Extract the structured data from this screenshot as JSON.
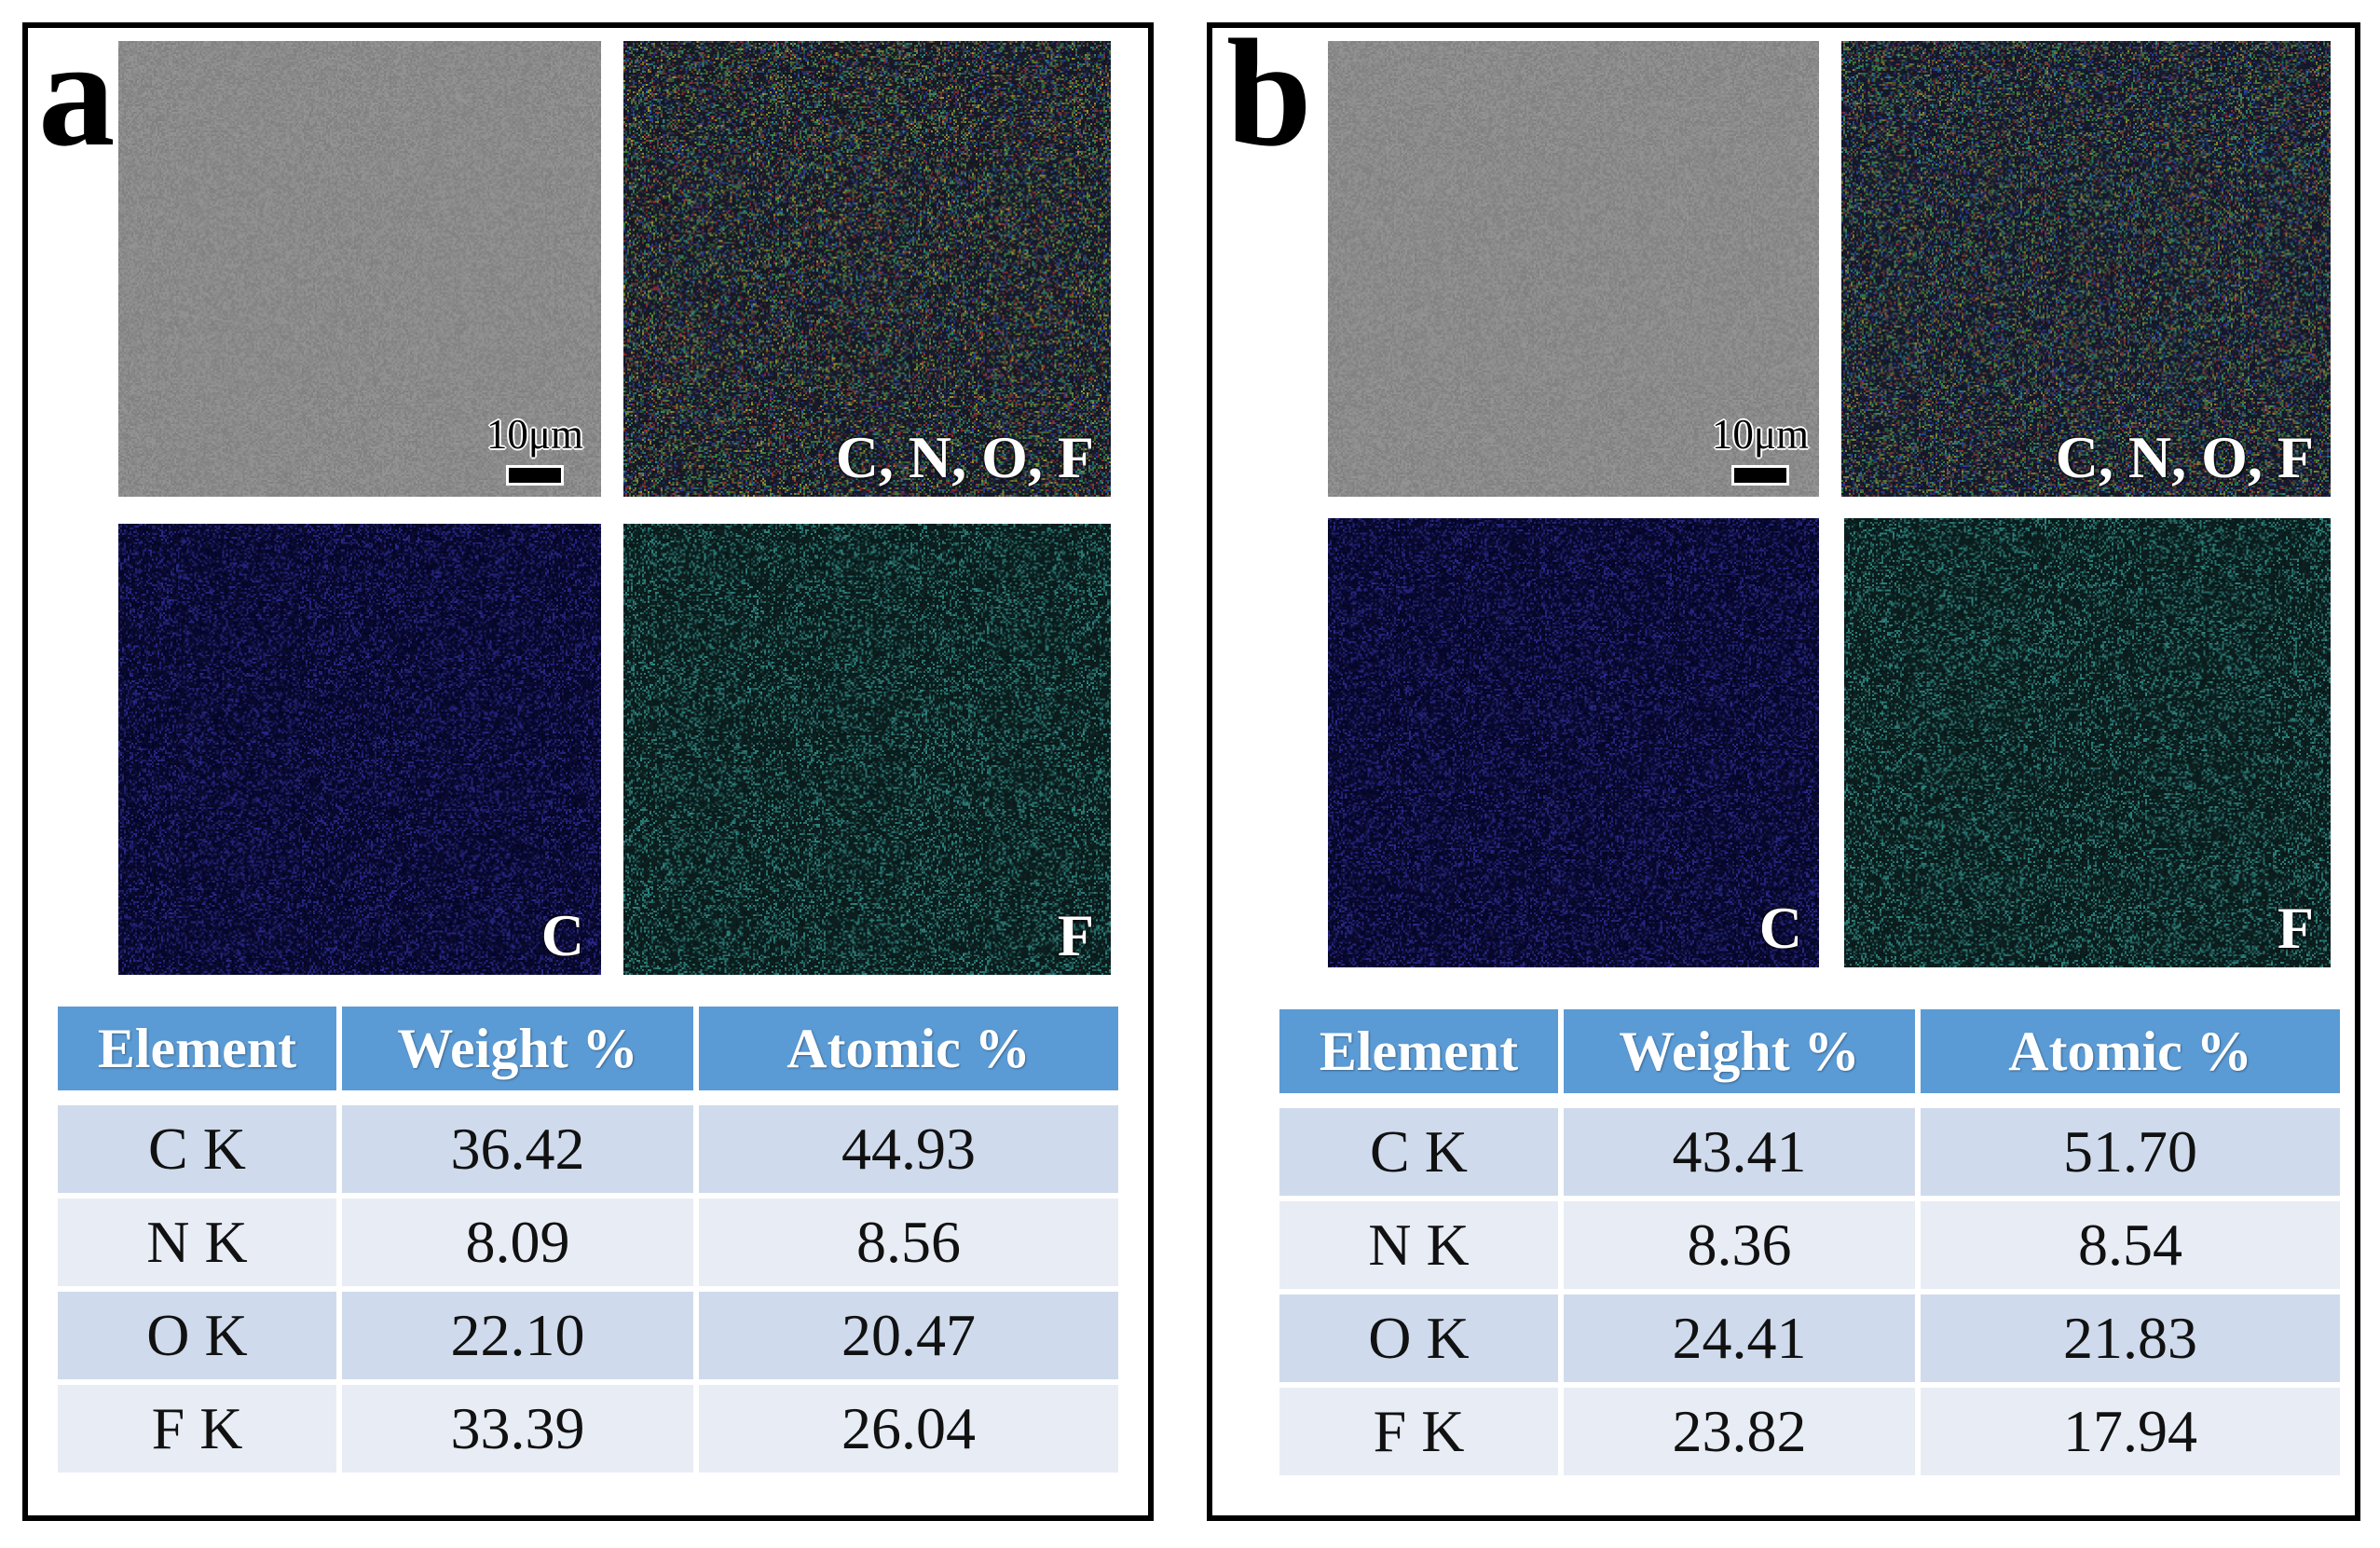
{
  "theme": {
    "frame": "#000000",
    "header_bg": "#5b9bd5",
    "row_odd": "#cfdbec",
    "row_even": "#e8ecf5",
    "cell_text": "#111111"
  },
  "panels": [
    {
      "label": "a",
      "scale_bar": "10μm",
      "maps": [
        {
          "colors": {
            "base": "#8a8a8a"
          }
        },
        {
          "label": "C, N, O, F",
          "colors": {
            "base": "#171926",
            "speckles": [
              "#2c3ca6",
              "#2a8c80",
              "#9a9a30",
              "#9c3232",
              "#3c8c3c"
            ]
          }
        },
        {
          "label": "C",
          "colors": {
            "base": "#08082c",
            "speckles": [
              "#2a2a8e"
            ]
          }
        },
        {
          "label": "F",
          "colors": {
            "base": "#0b1d1d",
            "speckles": [
              "#2f8883"
            ]
          }
        }
      ],
      "table": {
        "headers": [
          "Element",
          "Weight %",
          "Atomic %"
        ],
        "rows": [
          [
            "C K",
            "36.42",
            "44.93"
          ],
          [
            "N K",
            "8.09",
            "8.56"
          ],
          [
            "O K",
            "22.10",
            "20.47"
          ],
          [
            "F K",
            "33.39",
            "26.04"
          ]
        ]
      }
    },
    {
      "label": "b",
      "scale_bar": "10μm",
      "maps": [
        {
          "colors": {
            "base": "#8a8a8a"
          }
        },
        {
          "label": "C, N, O, F",
          "colors": {
            "base": "#15192a",
            "speckles": [
              "#2c3ca6",
              "#2a8c80",
              "#8a8a34",
              "#8c3232",
              "#3c8c3c"
            ]
          }
        },
        {
          "label": "C",
          "colors": {
            "base": "#08082c",
            "speckles": [
              "#2a2a8e"
            ]
          }
        },
        {
          "label": "F",
          "colors": {
            "base": "#0b1d1d",
            "speckles": [
              "#2f8883"
            ]
          }
        }
      ],
      "table": {
        "headers": [
          "Element",
          "Weight %",
          "Atomic %"
        ],
        "rows": [
          [
            "C K",
            "43.41",
            "51.70"
          ],
          [
            "N K",
            "8.36",
            "8.54"
          ],
          [
            "O K",
            "24.41",
            "21.83"
          ],
          [
            "F K",
            "23.82",
            "17.94"
          ]
        ]
      }
    }
  ]
}
